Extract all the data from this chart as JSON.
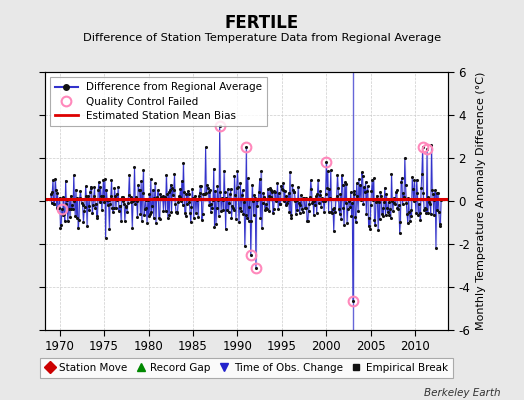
{
  "title": "FERTILE",
  "subtitle": "Difference of Station Temperature Data from Regional Average",
  "ylabel": "Monthly Temperature Anomaly Difference (°C)",
  "xlabel_years": [
    1970,
    1975,
    1980,
    1985,
    1990,
    1995,
    2000,
    2005,
    2010
  ],
  "ylim": [
    -6,
    6
  ],
  "xlim": [
    1968.3,
    2013.7
  ],
  "bias_value": 0.08,
  "time_of_obs_change_year": 2003.0,
  "background_color": "#e8e8e8",
  "plot_bg_color": "#ffffff",
  "line_color": "#3333cc",
  "line_fill_color": "#9999dd",
  "dot_color": "#111111",
  "bias_color": "#dd0000",
  "qc_fail_color": "#ff88bb",
  "watermark": "Berkeley Earth",
  "seed": 42,
  "n_points": 528
}
